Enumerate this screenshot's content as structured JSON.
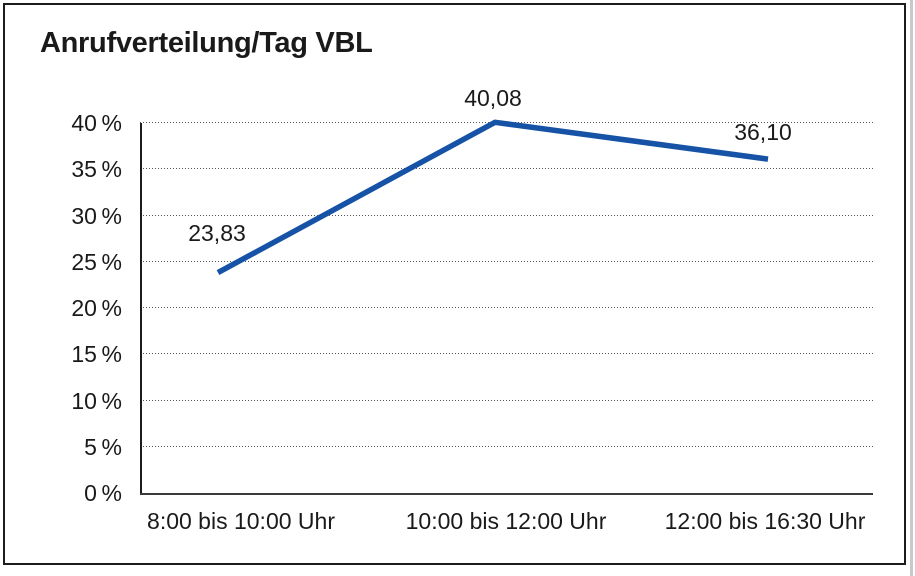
{
  "page": {
    "background_color": "#ffffff",
    "frame_border_color": "#1c1c1c",
    "page_edge_color": "#c9c9c9"
  },
  "chart_data": {
    "type": "line",
    "title": "Anrufverteilung/Tag VBL",
    "categories": [
      "8:00 bis 10:00 Uhr",
      "10:00 bis 12:00 Uhr",
      "12:00 bis 16:30 Uhr"
    ],
    "values": [
      23.83,
      40.08,
      36.1
    ],
    "value_labels": [
      "23,83",
      "40,08",
      "36,10"
    ],
    "y_tick_labels": [
      "0 %",
      "5 %",
      "10 %",
      "15 %",
      "20 %",
      "25 %",
      "30 %",
      "35 %",
      "40 %"
    ],
    "ylim": [
      0,
      40
    ],
    "y_tick_step": 5,
    "xlabel": "",
    "ylabel": "",
    "grid": "horizontal-dotted",
    "legend_position": "none",
    "line_color": "#1652A5",
    "axis_color": "#1c1c1c",
    "grid_color": "#555555",
    "text_color": "#1a1a1a"
  }
}
